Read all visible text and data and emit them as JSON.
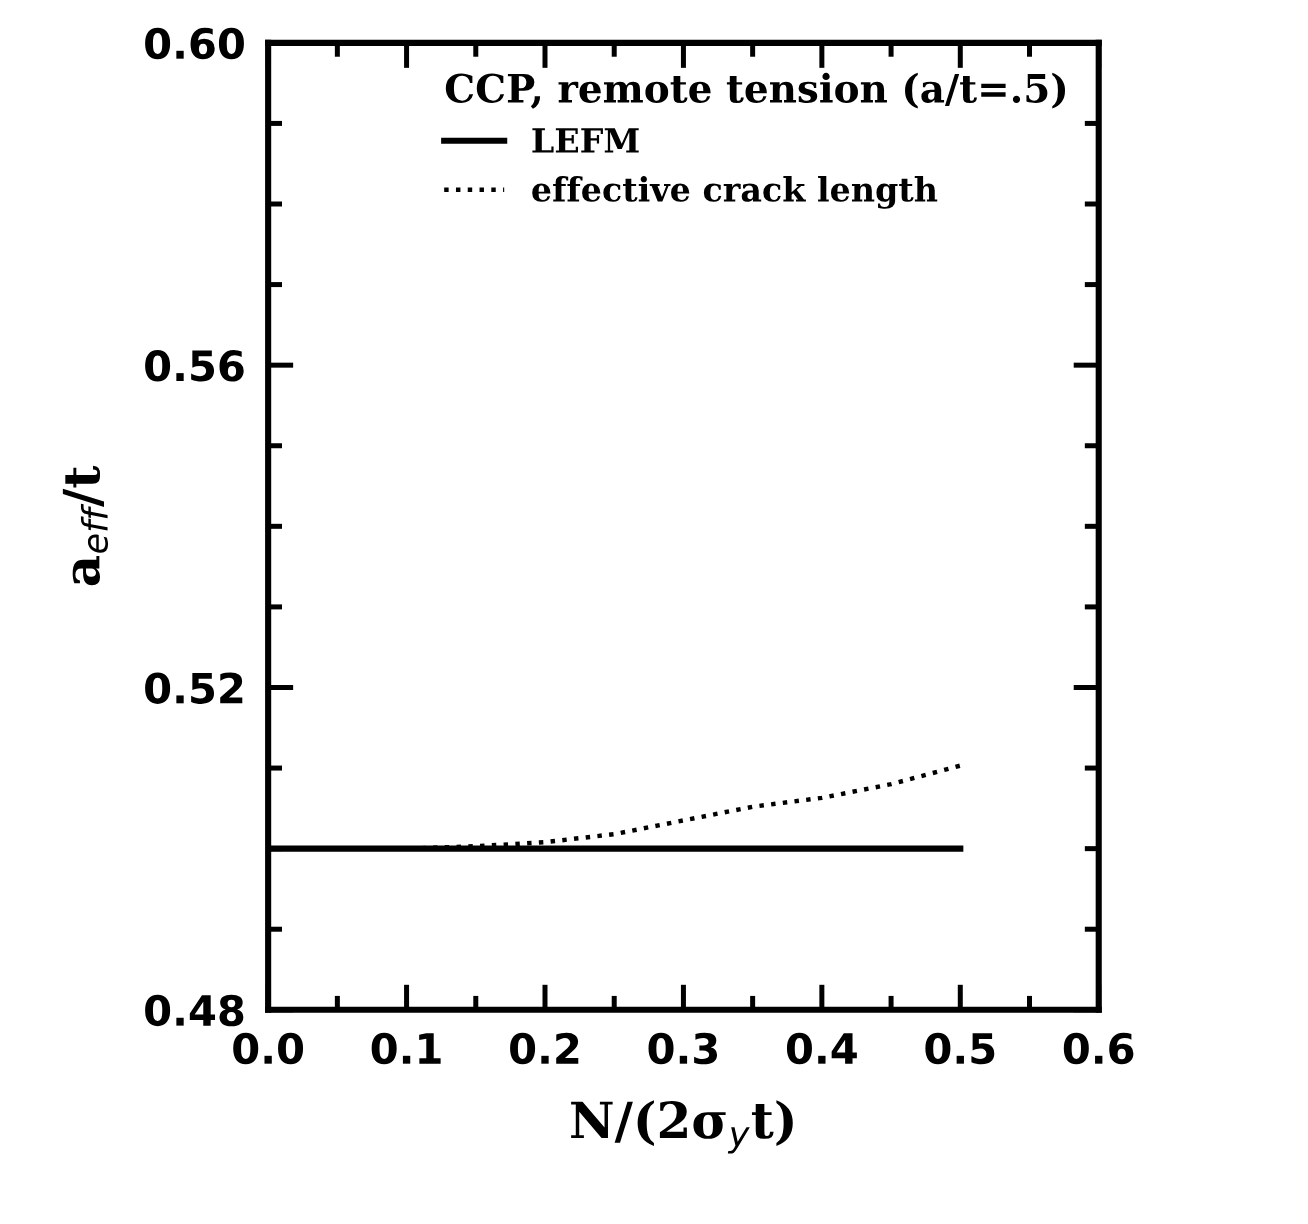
{
  "chart_data": {
    "type": "line",
    "xlabel": "N/(2σ$_{y}$t)",
    "ylabel": "a$_{eff}$/t",
    "legend_title": "CCP, remote tension (a/t=.5)",
    "x": [
      0.0,
      0.1,
      0.15,
      0.2,
      0.25,
      0.3,
      0.35,
      0.4,
      0.45,
      0.5
    ],
    "series": [
      {
        "name": "LEFM",
        "color": "#000000",
        "line_style": "solid",
        "values": [
          0.5,
          0.5,
          0.5,
          0.5,
          0.5,
          0.5,
          0.5,
          0.5,
          0.5,
          0.5
        ]
      },
      {
        "name": "effective crack length",
        "color": "#000000",
        "line_style": "dotted",
        "values": [
          0.5,
          0.5,
          0.5003,
          0.5008,
          0.5018,
          0.5035,
          0.5052,
          0.5063,
          0.508,
          0.5103
        ]
      }
    ],
    "xlim": [
      0.0,
      0.6
    ],
    "ylim": [
      0.48,
      0.6
    ],
    "xticks": [
      {
        "value": 0.0,
        "label": "0.0"
      },
      0.1,
      0.2,
      0.3,
      0.4,
      0.5,
      0.6
    ],
    "yticks": [
      0.48,
      0.52,
      0.56,
      {
        "value": 0.6,
        "label": "0.60"
      }
    ],
    "grid": false,
    "legend": "top right"
  }
}
